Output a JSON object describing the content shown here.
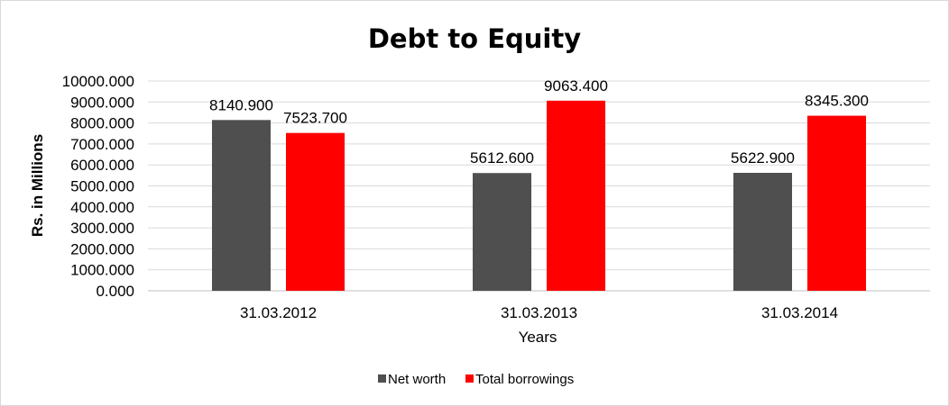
{
  "chart_data": {
    "type": "bar",
    "title": "Debt to Equity",
    "xlabel": "Years",
    "ylabel": "Rs. in Millions",
    "categories": [
      "31.03.2012",
      "31.03.2013",
      "31.03.2014"
    ],
    "series": [
      {
        "name": "Net worth",
        "color": "#4f4f4f",
        "values": [
          8140.9,
          5612.6,
          5622.9
        ],
        "labels": [
          "8140.900",
          "5612.600",
          "5622.900"
        ]
      },
      {
        "name": "Total borrowings",
        "color": "#ff0000",
        "values": [
          7523.7,
          9063.4,
          8345.3
        ],
        "labels": [
          "7523.700",
          "9063.400",
          "8345.300"
        ]
      }
    ],
    "ylim": [
      0,
      10000
    ],
    "yticks": [
      0,
      1000,
      2000,
      3000,
      4000,
      5000,
      6000,
      7000,
      8000,
      9000,
      10000
    ],
    "ytick_labels": [
      "0.000",
      "1000.000",
      "2000.000",
      "3000.000",
      "4000.000",
      "5000.000",
      "6000.000",
      "7000.000",
      "8000.000",
      "9000.000",
      "10000.000"
    ],
    "grid": true,
    "legend": "bottom"
  }
}
